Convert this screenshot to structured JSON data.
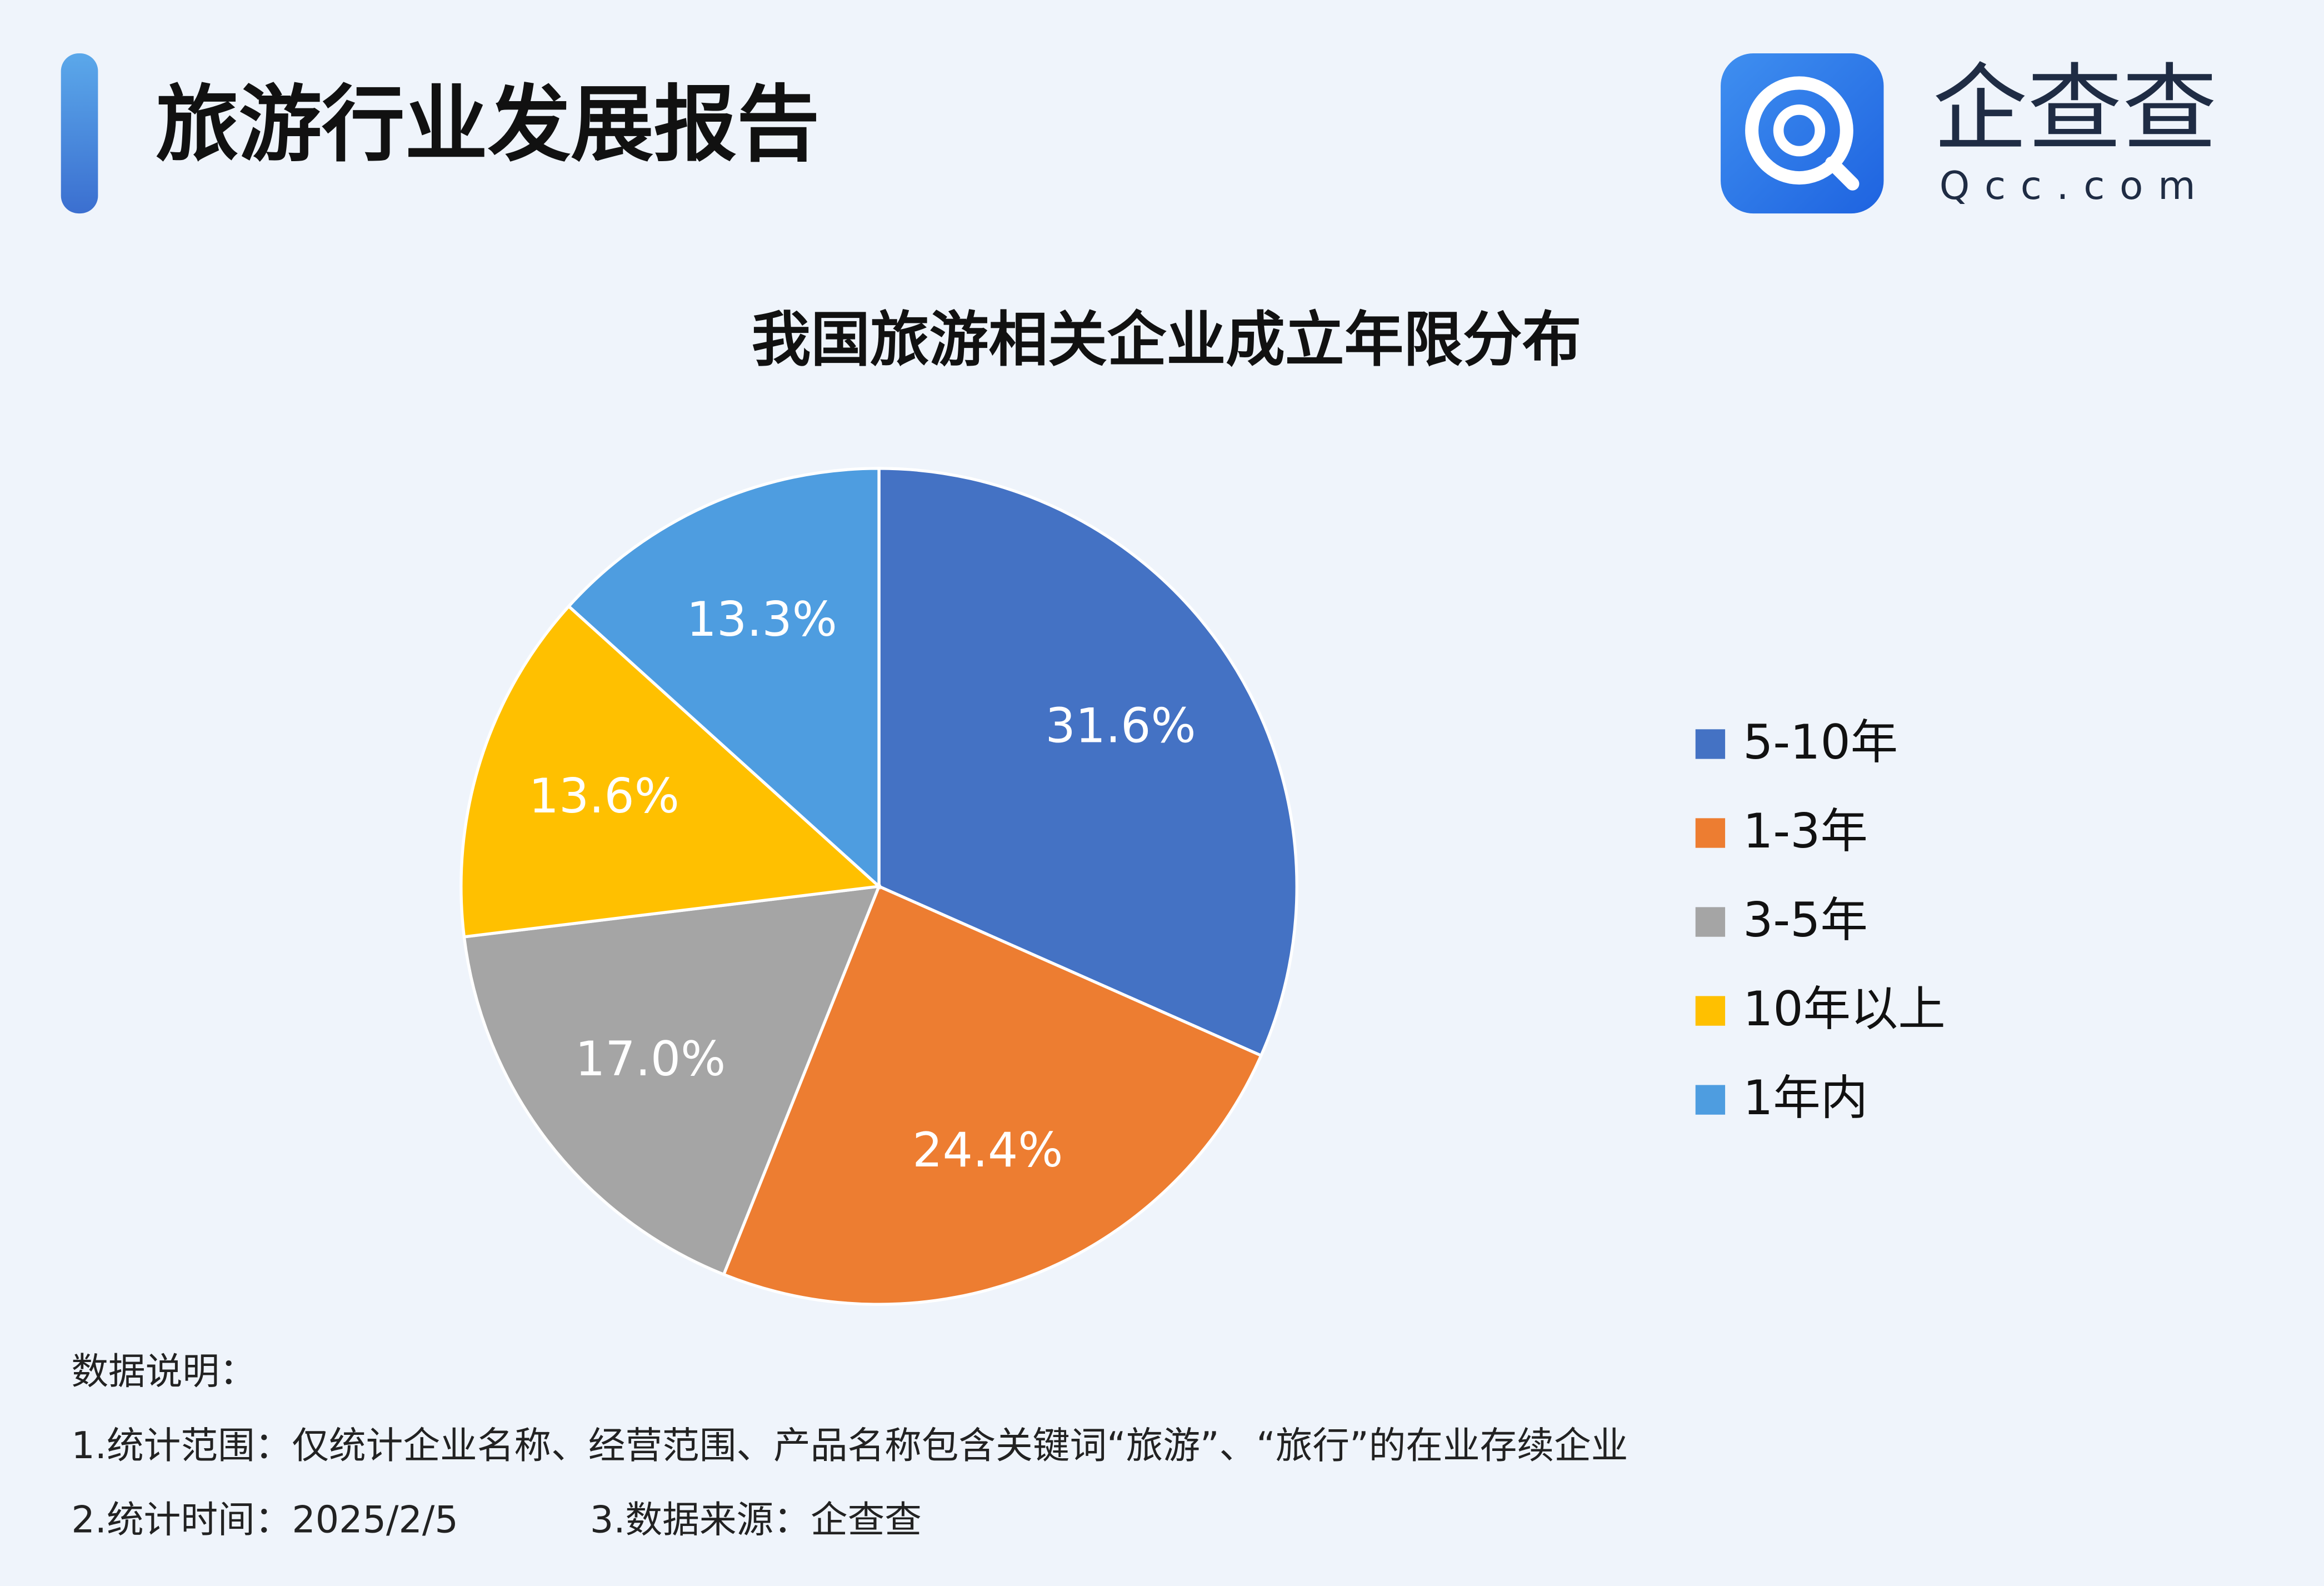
{
  "header": {
    "title": "旅游行业发展报告",
    "logo_name": "企查查",
    "logo_url": "Qcc.com"
  },
  "chart_data": {
    "type": "pie",
    "title": "我国旅游相关企业成立年限分布",
    "categories": [
      "5-10年",
      "1-3年",
      "3-5年",
      "10年以上",
      "1年内"
    ],
    "values": [
      31.6,
      24.4,
      17.0,
      13.6,
      13.3
    ],
    "value_labels": [
      "31.6%",
      "24.4%",
      "17.0%",
      "13.6%",
      "13.3%"
    ],
    "colors": [
      "#4472c4",
      "#ed7d31",
      "#a5a5a5",
      "#ffc000",
      "#4e9de0"
    ],
    "legend": "right"
  },
  "notes": [
    "数据说明：",
    "1.统计范围：仅统计企业名称、经营范围、产品名称包含关键词“旅游”、“旅行”的在业存续企业",
    "2.统计时间：2025/2/5",
    "3.数据来源：企查查"
  ]
}
